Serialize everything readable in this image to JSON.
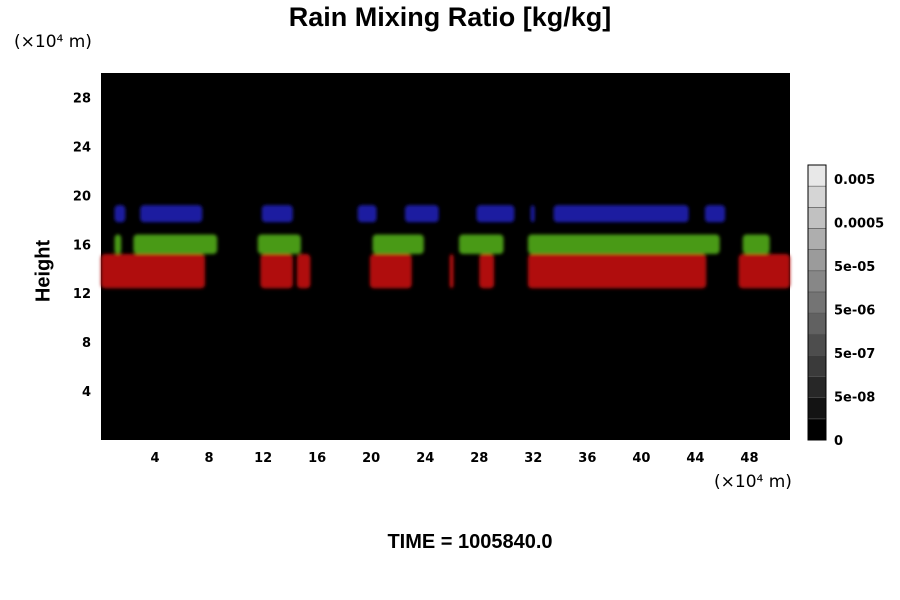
{
  "chart_data": {
    "type": "heatmap",
    "title": "Rain Mixing Ratio [kg/kg]",
    "xlabel": "",
    "ylabel": "Height",
    "x_unit": "(×10⁴ m)",
    "y_unit": "(×10⁴ m)",
    "footer": "TIME = 1005840.0",
    "xlim": [
      0,
      51
    ],
    "ylim": [
      0,
      30
    ],
    "x_ticks": [
      "4",
      "8",
      "12",
      "16",
      "20",
      "24",
      "28",
      "32",
      "36",
      "40",
      "44",
      "48"
    ],
    "y_ticks": [
      "4",
      "8",
      "12",
      "16",
      "20",
      "24",
      "28"
    ],
    "grid": false,
    "colorbar": {
      "labels": [
        "0.005",
        "0.0005",
        "5e-05",
        "5e-06",
        "5e-07",
        "5e-08",
        "0"
      ],
      "levels": 13
    },
    "background_color": "#000000",
    "layers": [
      {
        "color": "#1a1aa0",
        "y_range": [
          17.8,
          19.2
        ],
        "segments": [
          [
            1.0,
            1.8
          ],
          [
            2.9,
            7.5
          ],
          [
            11.9,
            14.2
          ],
          [
            19.0,
            20.4
          ],
          [
            22.5,
            25.0
          ],
          [
            27.8,
            30.6
          ],
          [
            31.8,
            32.1
          ],
          [
            33.5,
            43.5
          ],
          [
            44.7,
            46.2
          ]
        ]
      },
      {
        "color": "#4a9a16",
        "y_range": [
          15.2,
          16.8
        ],
        "segments": [
          [
            1.0,
            1.5
          ],
          [
            2.4,
            8.6
          ],
          [
            11.6,
            14.8
          ],
          [
            20.1,
            23.9
          ],
          [
            26.5,
            29.8
          ],
          [
            31.6,
            45.8
          ],
          [
            47.5,
            49.5
          ]
        ]
      },
      {
        "color": "#b01010",
        "y_range": [
          12.4,
          15.2
        ],
        "segments": [
          [
            0.0,
            7.7
          ],
          [
            11.8,
            14.2
          ],
          [
            14.5,
            15.5
          ],
          [
            19.9,
            23.0
          ],
          [
            25.8,
            26.1
          ],
          [
            28.0,
            29.1
          ],
          [
            31.6,
            44.8
          ],
          [
            47.2,
            51.0
          ]
        ]
      }
    ]
  }
}
